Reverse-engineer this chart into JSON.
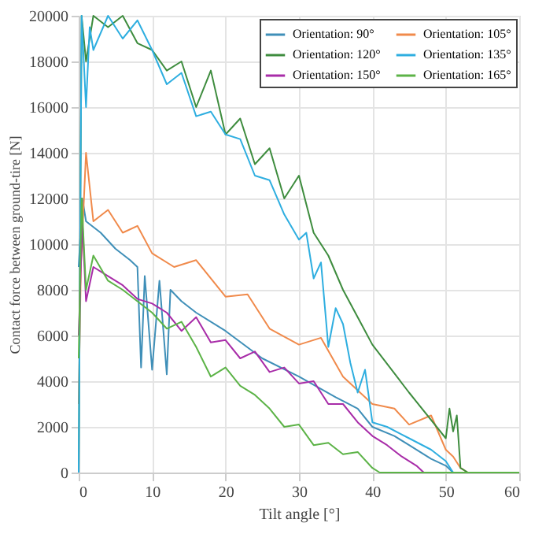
{
  "chart_data": {
    "type": "line",
    "xlabel": "Tilt angle [°]",
    "ylabel": "Contact force between ground-tire [N]",
    "xlim": [
      0,
      60
    ],
    "ylim": [
      0,
      20000
    ],
    "xticks": [
      0,
      10,
      20,
      30,
      40,
      50,
      60
    ],
    "yticks": [
      0,
      2000,
      4000,
      6000,
      8000,
      10000,
      12000,
      14000,
      16000,
      18000,
      20000
    ],
    "grid": true,
    "legend": "top right",
    "line_style": "solid",
    "marker": "none",
    "series": [
      {
        "name": "Orientation: 90°",
        "color": "#3f8fb8",
        "x": [
          0,
          0.5,
          1,
          3,
          5,
          7,
          8,
          8.5,
          9,
          10,
          11,
          12,
          12.5,
          14,
          16,
          20,
          25,
          30,
          35,
          38,
          40,
          43,
          45,
          48,
          50,
          51,
          52
        ],
        "values": [
          9000,
          12000,
          11000,
          10500,
          9800,
          9300,
          9000,
          4600,
          8600,
          4500,
          8400,
          4300,
          8000,
          7500,
          7000,
          6200,
          5000,
          4200,
          3300,
          2800,
          2000,
          1600,
          1200,
          600,
          300,
          0,
          0
        ]
      },
      {
        "name": "Orientation: 105°",
        "color": "#f08a4b",
        "x": [
          0,
          0.3,
          1,
          2,
          4,
          6,
          8,
          10,
          13,
          16,
          20,
          23,
          26,
          30,
          33,
          36,
          40,
          43,
          45,
          48,
          50,
          51,
          52,
          53,
          60
        ],
        "values": [
          3000,
          9000,
          14000,
          11000,
          11500,
          10500,
          10800,
          9600,
          9000,
          9300,
          7700,
          7800,
          6300,
          5600,
          5900,
          4200,
          3000,
          2800,
          2100,
          2500,
          1000,
          700,
          200,
          0,
          0
        ]
      },
      {
        "name": "Orientation: 120°",
        "color": "#3e8c3e",
        "x": [
          0,
          0.4,
          1,
          2,
          4,
          6,
          8,
          10,
          12,
          14,
          16,
          18,
          20,
          22,
          24,
          26,
          28,
          30,
          32,
          34,
          36,
          38,
          40,
          45,
          50,
          50.5,
          51,
          51.5,
          52,
          53,
          60
        ],
        "values": [
          0,
          20000,
          18000,
          20000,
          19500,
          20000,
          18800,
          18500,
          17600,
          18000,
          16000,
          17600,
          14800,
          15500,
          13500,
          14200,
          12000,
          13000,
          10500,
          9500,
          8000,
          6800,
          5600,
          3500,
          1500,
          2800,
          1800,
          2500,
          200,
          0,
          0
        ]
      },
      {
        "name": "Orientation: 135°",
        "color": "#2eaee0",
        "x": [
          0,
          0.4,
          1,
          1.5,
          2,
          4,
          6,
          8,
          10,
          12,
          14,
          16,
          18,
          20,
          22,
          24,
          26,
          28,
          30,
          31,
          32,
          33,
          34,
          35,
          36,
          37,
          38,
          39,
          40,
          42,
          45,
          48,
          50,
          51,
          52
        ],
        "values": [
          0,
          20000,
          16000,
          19500,
          18500,
          20000,
          19000,
          19800,
          18500,
          17000,
          17500,
          15600,
          15800,
          14800,
          14600,
          13000,
          12800,
          11300,
          10200,
          10500,
          8500,
          9200,
          5500,
          7200,
          6500,
          4800,
          3500,
          4500,
          2200,
          2000,
          1500,
          1000,
          500,
          0,
          0
        ]
      },
      {
        "name": "Orientation: 150°",
        "color": "#a82ca8",
        "x": [
          0,
          0.5,
          1,
          2,
          4,
          6,
          8,
          10,
          12,
          14,
          16,
          18,
          20,
          22,
          24,
          26,
          28,
          30,
          32,
          34,
          36,
          38,
          40,
          42,
          44,
          46,
          47
        ],
        "values": [
          6000,
          11000,
          7500,
          9000,
          8600,
          8200,
          7600,
          7400,
          7000,
          6200,
          6800,
          5700,
          5800,
          5000,
          5300,
          4400,
          4600,
          3900,
          4000,
          3000,
          3000,
          2200,
          1600,
          1200,
          700,
          300,
          0
        ]
      },
      {
        "name": "Orientation: 165°",
        "color": "#5cb347",
        "x": [
          0,
          0.4,
          1,
          2,
          4,
          6,
          8,
          10,
          12,
          14,
          16,
          18,
          20,
          22,
          24,
          26,
          28,
          30,
          32,
          34,
          36,
          38,
          40,
          41,
          60
        ],
        "values": [
          5000,
          12000,
          8000,
          9500,
          8400,
          8000,
          7500,
          7000,
          6300,
          6600,
          5500,
          4200,
          4600,
          3800,
          3400,
          2800,
          2000,
          2100,
          1200,
          1300,
          800,
          900,
          200,
          0,
          0
        ]
      }
    ]
  }
}
